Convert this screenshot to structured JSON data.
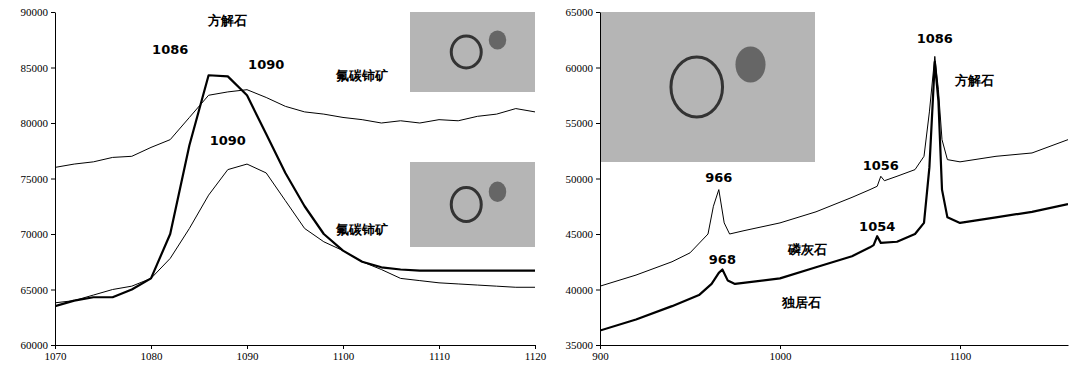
{
  "chart_data": [
    {
      "type": "line",
      "grid": false,
      "xlim": [
        1070,
        1120
      ],
      "xticks": [
        1070,
        1080,
        1090,
        1100,
        1110,
        1120
      ],
      "ylim": [
        60000,
        90000
      ],
      "yticks": [
        60000,
        65000,
        70000,
        75000,
        80000,
        85000,
        90000
      ],
      "series": [
        {
          "color": "#000000",
          "line_style": "thick",
          "x": [
            1070,
            1072,
            1074,
            1076,
            1078,
            1080,
            1082,
            1084,
            1086,
            1088,
            1090,
            1092,
            1094,
            1096,
            1098,
            1100,
            1102,
            1104,
            1106,
            1108,
            1110,
            1112,
            1114,
            1116,
            1118,
            1120
          ],
          "values": [
            63500,
            64000,
            64300,
            64300,
            65000,
            66000,
            70000,
            78000,
            84300,
            84200,
            82500,
            79000,
            75500,
            72500,
            70000,
            68500,
            67500,
            67000,
            66800,
            66700,
            66700,
            66700,
            66700,
            66700,
            66700,
            66700
          ]
        },
        {
          "color": "#000000",
          "line_style": "thin",
          "x": [
            1070,
            1072,
            1074,
            1076,
            1078,
            1080,
            1082,
            1084,
            1086,
            1088,
            1090,
            1092,
            1094,
            1096,
            1098,
            1100,
            1102,
            1104,
            1106,
            1108,
            1110,
            1112,
            1114,
            1116,
            1118,
            1120
          ],
          "values": [
            76000,
            76300,
            76500,
            76900,
            77000,
            77800,
            78500,
            80500,
            82500,
            82800,
            83000,
            82300,
            81500,
            81000,
            80800,
            80500,
            80300,
            80000,
            80200,
            80000,
            80300,
            80200,
            80600,
            80800,
            81300,
            81000
          ]
        },
        {
          "color": "#000000",
          "line_style": "thin",
          "x": [
            1070,
            1072,
            1074,
            1076,
            1078,
            1080,
            1082,
            1084,
            1086,
            1088,
            1090,
            1092,
            1094,
            1096,
            1098,
            1100,
            1102,
            1104,
            1106,
            1108,
            1110,
            1112,
            1114,
            1116,
            1118,
            1120
          ],
          "values": [
            63800,
            64000,
            64500,
            65000,
            65300,
            66000,
            67800,
            70500,
            73500,
            75800,
            76300,
            75500,
            73000,
            70500,
            69300,
            68500,
            67500,
            66800,
            66000,
            65800,
            65600,
            65500,
            65400,
            65300,
            65200,
            65200
          ]
        }
      ],
      "annotations": [
        {
          "text": "方解石",
          "x": 1088,
          "y": 89200
        },
        {
          "text": "1086",
          "x": 1082,
          "y": 86600
        },
        {
          "text": "1090",
          "x": 1092,
          "y": 85300
        },
        {
          "text": "氟碳铈矿",
          "x": 1102,
          "y": 84300
        },
        {
          "text": "1090",
          "x": 1088,
          "y": 78400
        },
        {
          "text": "氟碳铈矿",
          "x": 1102,
          "y": 70400
        }
      ]
    },
    {
      "type": "line",
      "grid": false,
      "xlim": [
        900,
        1160
      ],
      "xticks": [
        900,
        1000,
        1100
      ],
      "ylim": [
        35000,
        65000
      ],
      "yticks": [
        35000,
        40000,
        45000,
        50000,
        55000,
        60000,
        65000
      ],
      "series": [
        {
          "color": "#000000",
          "line_style": "thin",
          "x": [
            900,
            920,
            940,
            950,
            960,
            963,
            966,
            969,
            972,
            980,
            1000,
            1020,
            1040,
            1050,
            1054,
            1056,
            1058,
            1065,
            1075,
            1080,
            1083,
            1086,
            1088,
            1090,
            1093,
            1100,
            1120,
            1140,
            1160
          ],
          "values": [
            40300,
            41300,
            42500,
            43300,
            45000,
            47500,
            49000,
            46000,
            45000,
            45300,
            46000,
            47000,
            48300,
            49000,
            49300,
            50200,
            49800,
            50200,
            50800,
            52000,
            56000,
            61000,
            58000,
            53500,
            51700,
            51500,
            52000,
            52300,
            53500
          ]
        },
        {
          "color": "#000000",
          "line_style": "thick",
          "x": [
            900,
            920,
            940,
            955,
            962,
            966,
            968,
            971,
            975,
            1000,
            1020,
            1040,
            1050,
            1052,
            1054,
            1056,
            1065,
            1075,
            1080,
            1083,
            1086,
            1088,
            1090,
            1093,
            1100,
            1120,
            1140,
            1160
          ],
          "values": [
            36300,
            37300,
            38500,
            39500,
            40500,
            41500,
            41800,
            40800,
            40500,
            41000,
            42000,
            43000,
            43800,
            44000,
            44800,
            44200,
            44300,
            45000,
            46000,
            51000,
            60500,
            57000,
            49000,
            46500,
            46000,
            46500,
            47000,
            47700
          ]
        }
      ],
      "annotations": [
        {
          "text": "1086",
          "x": 1086,
          "y": 62600
        },
        {
          "text": "方解石",
          "x": 1108,
          "y": 58800
        },
        {
          "text": "966",
          "x": 966,
          "y": 50100
        },
        {
          "text": "968",
          "x": 968,
          "y": 42700
        },
        {
          "text": "1056",
          "x": 1056,
          "y": 51200
        },
        {
          "text": "1054",
          "x": 1054,
          "y": 45700
        },
        {
          "text": "磷灰石",
          "x": 1015,
          "y": 43600
        },
        {
          "text": "独居石",
          "x": 1012,
          "y": 38800
        }
      ]
    }
  ]
}
